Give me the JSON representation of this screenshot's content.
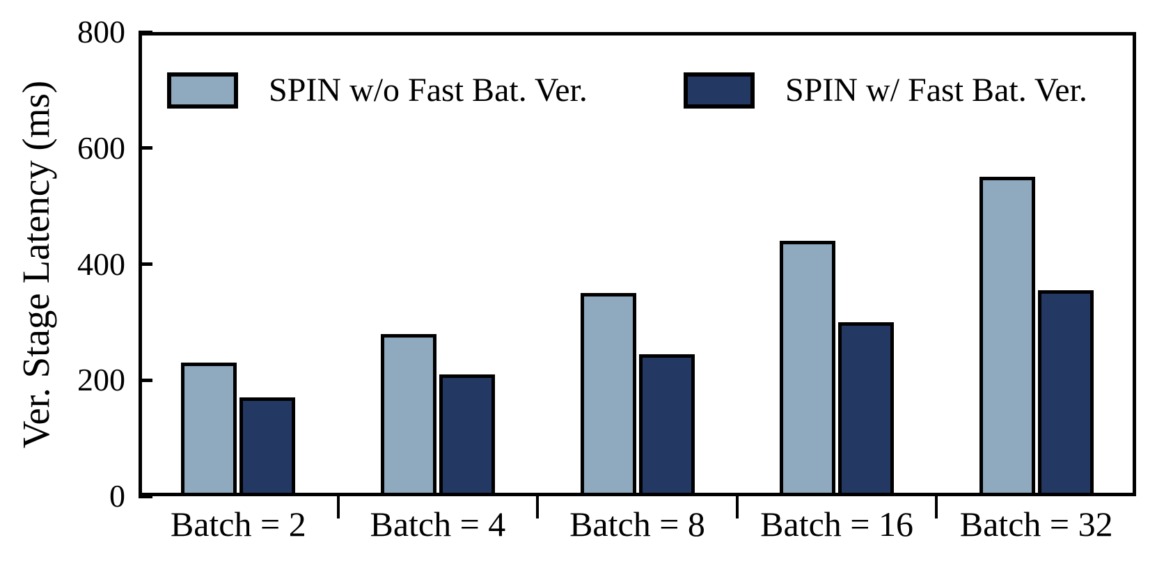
{
  "chart_data": {
    "type": "bar",
    "title": "",
    "xlabel": "",
    "ylabel": "Ver. Stage Latency (ms)",
    "categories": [
      "Batch = 2",
      "Batch = 4",
      "Batch = 8",
      "Batch = 16",
      "Batch = 32"
    ],
    "series": [
      {
        "name": "SPIN w/o Fast Bat. Ver.",
        "color": "#8FA9BE",
        "values": [
          230,
          280,
          350,
          440,
          550
        ]
      },
      {
        "name": "SPIN w/ Fast Bat. Ver.",
        "color": "#233862",
        "values": [
          170,
          210,
          245,
          300,
          355
        ]
      }
    ],
    "ylim": [
      0,
      800
    ],
    "yticks": [
      0,
      200,
      400,
      600,
      800
    ],
    "bar_edge_color": "#000000",
    "axis_color": "#000000",
    "grid": false,
    "legend_position": "top-inside"
  }
}
